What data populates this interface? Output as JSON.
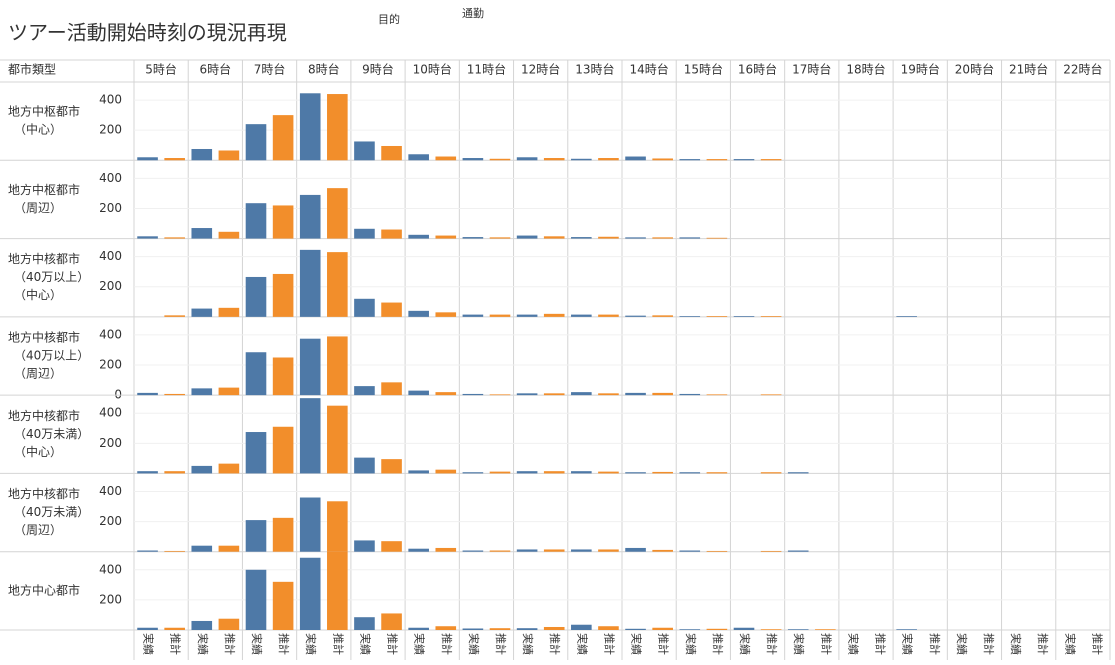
{
  "chart_data": {
    "type": "bar",
    "title": "ツアー活動開始時刻の現況再現",
    "filter_label": "目的",
    "filter_value": "通勤",
    "row_header": "都市類型",
    "categories": [
      "5時台",
      "6時台",
      "7時台",
      "8時台",
      "9時台",
      "10時台",
      "11時台",
      "12時台",
      "13時台",
      "14時台",
      "15時台",
      "16時台",
      "17時台",
      "18時台",
      "19時台",
      "20時台",
      "21時台",
      "22時台"
    ],
    "series": [
      {
        "name": "実績",
        "color": "#4e79a7"
      },
      {
        "name": "推計",
        "color": "#f28e2b"
      }
    ],
    "ylim": [
      0,
      520
    ],
    "grid": true,
    "panels": [
      {
        "label": [
          "地方中枢都市",
          "（中心）"
        ],
        "yticks": [
          200,
          400
        ],
        "values": [
          [
            20,
            75,
            240,
            445,
            125,
            40,
            15,
            20,
            10,
            25,
            8,
            8,
            null,
            null,
            null,
            null,
            null,
            null
          ],
          [
            15,
            65,
            300,
            440,
            95,
            25,
            10,
            15,
            15,
            12,
            8,
            8,
            null,
            null,
            null,
            null,
            null,
            null
          ]
        ]
      },
      {
        "label": [
          "地方中枢都市",
          "（周辺）"
        ],
        "yticks": [
          200,
          400
        ],
        "values": [
          [
            15,
            70,
            235,
            290,
            65,
            25,
            10,
            20,
            10,
            8,
            8,
            null,
            null,
            null,
            null,
            null,
            null,
            null
          ],
          [
            8,
            45,
            220,
            335,
            60,
            20,
            8,
            15,
            12,
            8,
            5,
            null,
            null,
            null,
            null,
            null,
            null,
            null
          ]
        ]
      },
      {
        "label": [
          "地方中核都市",
          "（40万以上）",
          "（中心）"
        ],
        "yticks": [
          200,
          400
        ],
        "values": [
          [
            null,
            55,
            265,
            445,
            120,
            40,
            15,
            15,
            15,
            8,
            5,
            5,
            null,
            null,
            5,
            null,
            null,
            null
          ],
          [
            10,
            60,
            285,
            430,
            95,
            30,
            15,
            20,
            15,
            10,
            5,
            5,
            null,
            null,
            null,
            null,
            null,
            null
          ]
        ]
      },
      {
        "label": [
          "地方中核都市",
          "（40万以上）",
          "（周辺）"
        ],
        "yticks": [
          0,
          200,
          400
        ],
        "values": [
          [
            15,
            45,
            285,
            375,
            60,
            30,
            8,
            12,
            20,
            15,
            8,
            null,
            null,
            null,
            null,
            null,
            null,
            null
          ],
          [
            8,
            50,
            250,
            390,
            85,
            20,
            5,
            12,
            12,
            15,
            5,
            5,
            null,
            null,
            null,
            null,
            null,
            null
          ]
        ]
      },
      {
        "label": [
          "地方中核都市",
          "（40万未満）",
          "（中心）"
        ],
        "yticks": [
          200,
          400
        ],
        "values": [
          [
            15,
            50,
            275,
            500,
            105,
            20,
            8,
            15,
            15,
            8,
            8,
            null,
            8,
            null,
            null,
            null,
            null,
            null
          ],
          [
            15,
            65,
            310,
            450,
            95,
            25,
            12,
            15,
            12,
            10,
            8,
            8,
            null,
            null,
            null,
            null,
            null,
            null
          ]
        ]
      },
      {
        "label": [
          "地方中核都市",
          "（40万未満）",
          "（周辺）"
        ],
        "yticks": [
          200,
          400
        ],
        "values": [
          [
            8,
            40,
            210,
            360,
            75,
            20,
            8,
            15,
            15,
            25,
            8,
            null,
            8,
            null,
            null,
            null,
            null,
            null
          ],
          [
            5,
            40,
            225,
            335,
            70,
            25,
            8,
            15,
            15,
            12,
            5,
            5,
            null,
            null,
            null,
            null,
            null,
            null
          ]
        ]
      },
      {
        "label": [
          "地方中心都市"
        ],
        "yticks": [
          200,
          400
        ],
        "values": [
          [
            15,
            60,
            400,
            480,
            85,
            15,
            10,
            12,
            35,
            8,
            5,
            15,
            5,
            null,
            5,
            null,
            null,
            null
          ],
          [
            15,
            75,
            320,
            520,
            110,
            25,
            12,
            20,
            25,
            15,
            8,
            5,
            5,
            null,
            null,
            null,
            null,
            null
          ]
        ]
      }
    ]
  }
}
